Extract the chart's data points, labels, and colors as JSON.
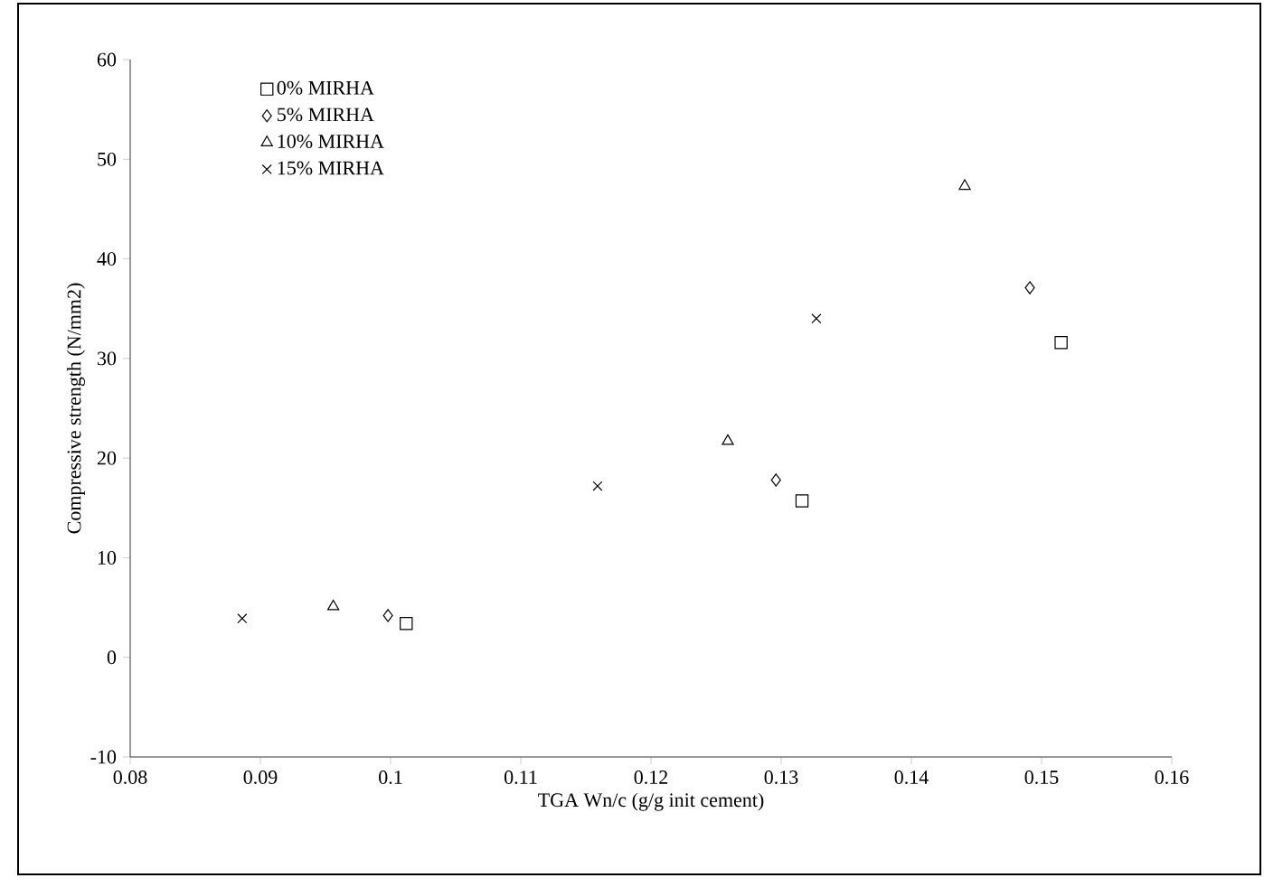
{
  "chart_data": {
    "type": "scatter",
    "xlabel": "TGA Wn/c (g/g init cement)",
    "ylabel": "Compressive strength (N/mm2)",
    "xlim": [
      0.08,
      0.16
    ],
    "xticks": [
      0.08,
      0.09,
      0.1,
      0.11,
      0.12,
      0.13,
      0.14,
      0.15,
      0.16
    ],
    "ylim": [
      -10,
      60
    ],
    "yticks": [
      -10,
      0,
      10,
      20,
      30,
      40,
      50,
      60
    ],
    "grid": false,
    "legend": "top left",
    "series": [
      {
        "name": "0% MIRHA",
        "color": "#000000",
        "marker": "square",
        "x": [
          0.1012,
          0.1316,
          0.1515
        ],
        "values": [
          3.4,
          15.7,
          31.6
        ]
      },
      {
        "name": "5% MIRHA",
        "color": "#000000",
        "marker": "diamond",
        "x": [
          0.0998,
          0.1296,
          0.1491
        ],
        "values": [
          4.2,
          17.8,
          37.1
        ]
      },
      {
        "name": "10% MIRHA",
        "color": "#000000",
        "marker": "triangle",
        "x": [
          0.0956,
          0.1259,
          0.1441
        ],
        "values": [
          5.1,
          21.7,
          47.3
        ]
      },
      {
        "name": "15% MIRHA",
        "color": "#000000",
        "marker": "cross",
        "x": [
          0.0886,
          0.1159,
          0.1327
        ],
        "values": [
          3.9,
          17.2,
          34.0
        ]
      }
    ]
  }
}
